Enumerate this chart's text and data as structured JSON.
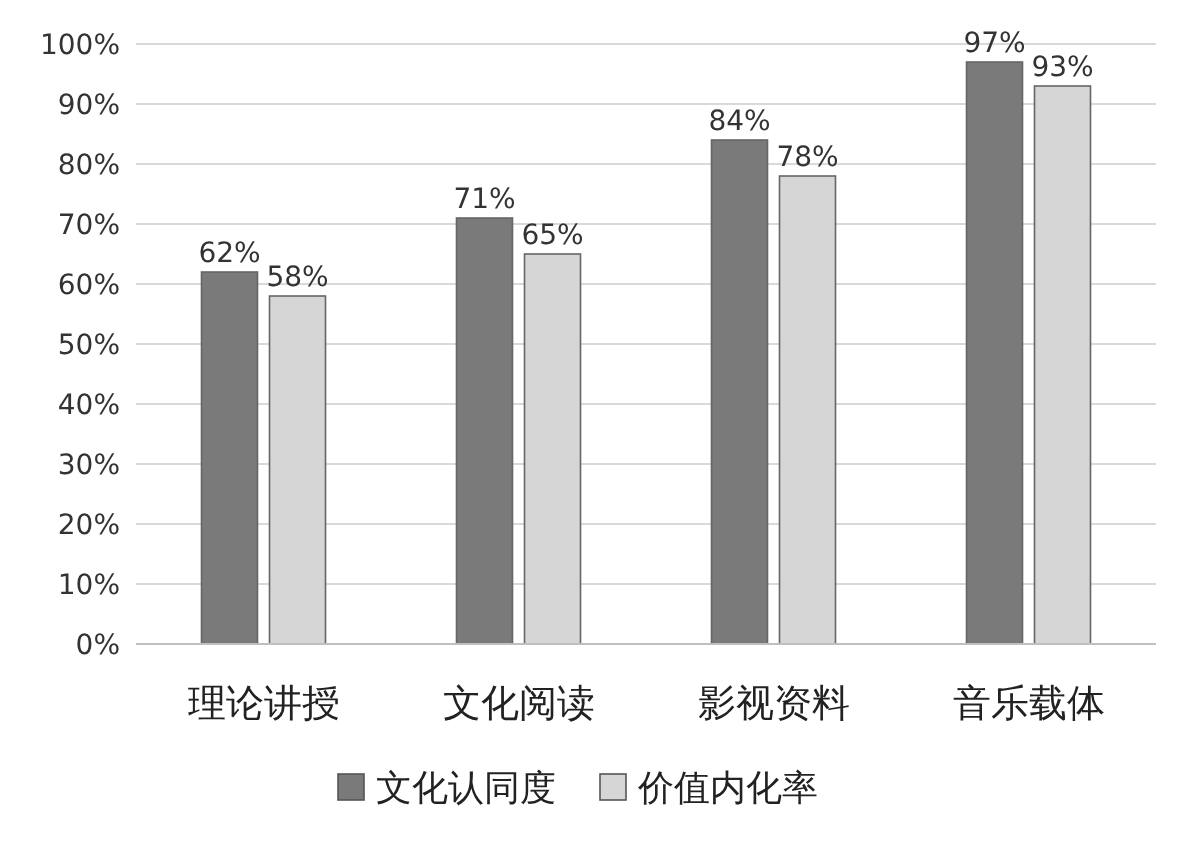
{
  "chart_data": {
    "type": "bar",
    "categories": [
      "理论讲授",
      "文化阅读",
      "影视资料",
      "音乐载体"
    ],
    "series": [
      {
        "name": "文化认同度",
        "color": "#7a7a7a",
        "values": [
          62,
          71,
          84,
          97
        ],
        "value_labels": [
          "62%",
          "71%",
          "84%",
          "97%"
        ]
      },
      {
        "name": "价值内化率",
        "color": "#d6d6d6",
        "values": [
          58,
          65,
          78,
          93
        ],
        "value_labels": [
          "58%",
          "65%",
          "78%",
          "93%"
        ]
      }
    ],
    "ylim": [
      0,
      100
    ],
    "yticks": [
      {
        "value": 0,
        "label": "0%"
      },
      {
        "value": 10,
        "label": "10%"
      },
      {
        "value": 20,
        "label": "20%"
      },
      {
        "value": 30,
        "label": "30%"
      },
      {
        "value": 40,
        "label": "40%"
      },
      {
        "value": 50,
        "label": "50%"
      },
      {
        "value": 60,
        "label": "60%"
      },
      {
        "value": 70,
        "label": "70%"
      },
      {
        "value": 80,
        "label": "80%"
      },
      {
        "value": 90,
        "label": "90%"
      },
      {
        "value": 100,
        "label": "100%"
      }
    ],
    "grid": "y",
    "legend": "bottom"
  }
}
